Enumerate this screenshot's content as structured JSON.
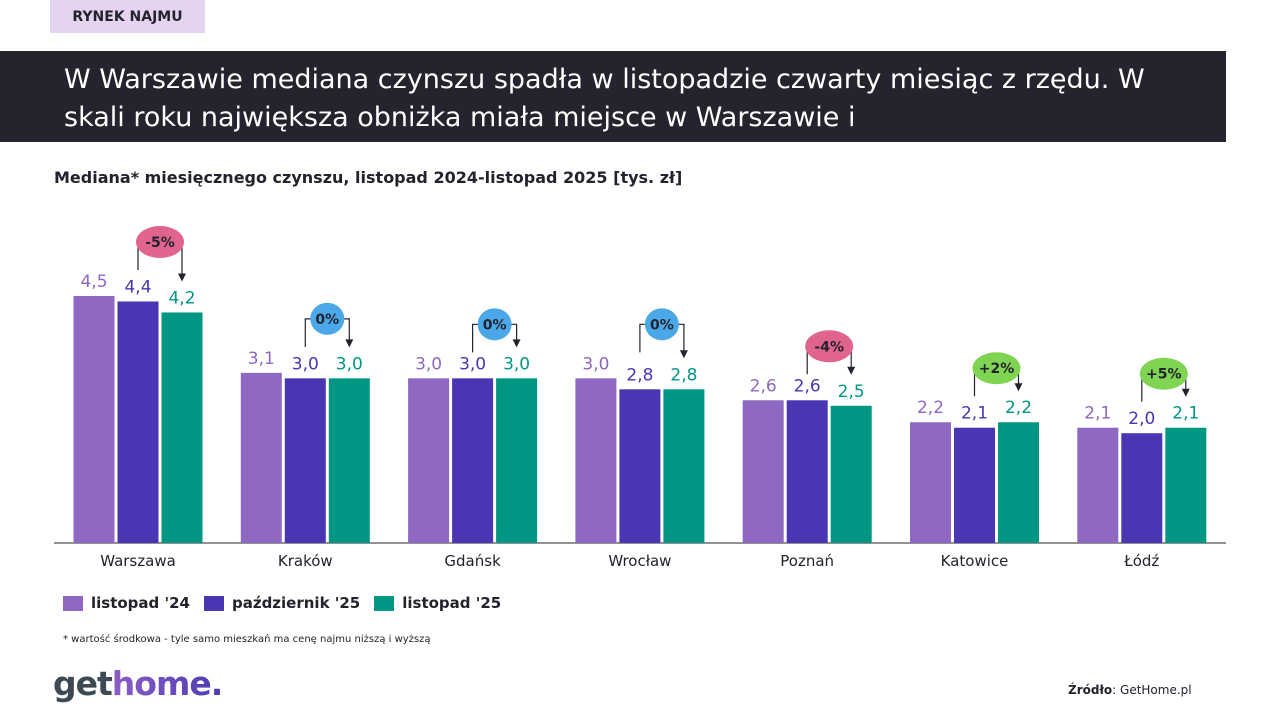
{
  "tag": "RYNEK NAJMU",
  "headline": "W Warszawie mediana czynszu spadła w listopadzie czwarty miesiąc z rzędu. W skali roku największa obniżka miała miejsce w Warszawie i",
  "chart_data": {
    "type": "bar",
    "title": "Mediana* miesięcznego czynszu, listopad 2024-listopad 2025 [tys. zł]",
    "categories": [
      "Warszawa",
      "Kraków",
      "Gdańsk",
      "Wrocław",
      "Poznań",
      "Katowice",
      "Łódź"
    ],
    "series": [
      {
        "name": "listopad '24",
        "color": "#8e68c1",
        "values": [
          4.5,
          3.1,
          3.0,
          3.0,
          2.6,
          2.2,
          2.1
        ],
        "labels": [
          "4,5",
          "3,1",
          "3,0",
          "3,0",
          "2,6",
          "2,2",
          "2,1"
        ]
      },
      {
        "name": "październik '25",
        "color": "#4a35b2",
        "values": [
          4.4,
          3.0,
          3.0,
          2.8,
          2.6,
          2.1,
          2.0
        ],
        "labels": [
          "4,4",
          "3,0",
          "3,0",
          "2,8",
          "2,6",
          "2,1",
          "2,0"
        ]
      },
      {
        "name": "listopad '25",
        "color": "#009684",
        "values": [
          4.2,
          3.0,
          3.0,
          2.8,
          2.5,
          2.2,
          2.1
        ],
        "labels": [
          "4,2",
          "3,0",
          "3,0",
          "2,8",
          "2,5",
          "2,2",
          "2,1"
        ]
      }
    ],
    "changes": [
      {
        "label": "-5%",
        "color": "#e0648e"
      },
      {
        "label": "0%",
        "color": "#4aa8e8"
      },
      {
        "label": "0%",
        "color": "#4aa8e8"
      },
      {
        "label": "0%",
        "color": "#4aa8e8"
      },
      {
        "label": "-4%",
        "color": "#e0648e"
      },
      {
        "label": "+2%",
        "color": "#7fd552"
      },
      {
        "label": "+5%",
        "color": "#7fd552"
      }
    ],
    "ylim": [
      0,
      4.5
    ],
    "legend": "bottom-left",
    "grid": false
  },
  "footnote": "* wartość środkowa  - tyle samo mieszkań ma cenę najmu niższą i wyższą",
  "logo": {
    "part1": "get",
    "part2": "home."
  },
  "source": {
    "label": "Źródło",
    "value": ": GetHome.pl"
  }
}
